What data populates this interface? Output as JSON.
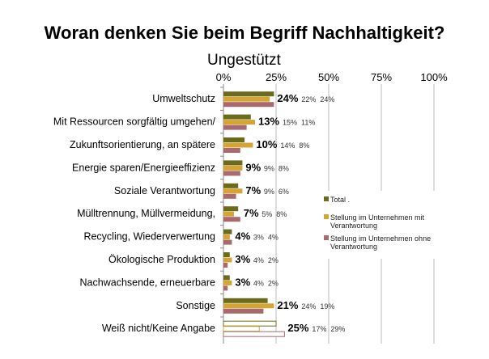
{
  "chart_data": {
    "type": "bar",
    "orientation": "horizontal",
    "title": "Woran denken Sie beim Begriff Nachhaltigkeit?",
    "subtitle": "Ungestützt",
    "categories": [
      "Umweltschutz",
      "Mit Ressourcen sorgfältig umgehen/",
      "Zukunftsorientierung, an spätere",
      "Energie sparen/Energieeffizienz",
      "Soziale Verantwortung",
      "Mülltrennung, Müllvermeidung,",
      "Recycling, Wiederverwertung",
      "Ökologische Produktion",
      "Nachwachsende, erneuerbare",
      "Sonstige",
      "Weiß nicht/Keine Angabe"
    ],
    "series": [
      {
        "name": "Total .",
        "color": "#6b6b1e",
        "values": [
          24,
          13,
          10,
          9,
          7,
          7,
          4,
          3,
          3,
          21,
          25
        ]
      },
      {
        "name": "Stellung im Unternehmen mit Verantwortung",
        "color": "#d4a534",
        "values": [
          22,
          15,
          14,
          9,
          9,
          5,
          3,
          4,
          4,
          24,
          17
        ]
      },
      {
        "name": "Stellung im Unternehmen ohne Verantwortung",
        "color": "#a86a6e",
        "values": [
          24,
          11,
          8,
          8,
          6,
          8,
          4,
          2,
          2,
          19,
          29
        ]
      }
    ],
    "xticks": [
      "0%",
      "25%",
      "50%",
      "75%",
      "100%"
    ],
    "xlim": [
      0,
      100
    ],
    "legend_position": "right",
    "grid": true
  }
}
